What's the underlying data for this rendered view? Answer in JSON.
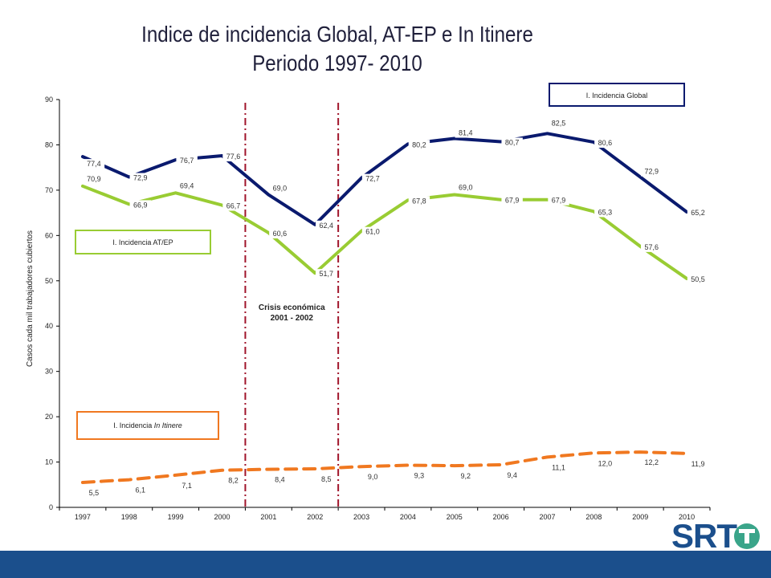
{
  "header": {
    "title_line1": "Indice de incidencia Global, AT-EP e In Itinere",
    "title_line2": "Periodo 1997- 2010"
  },
  "logo": {
    "text": "SRT"
  },
  "colors": {
    "global": "#0a1a6e",
    "atep": "#99cc33",
    "itinere": "#f07820",
    "crisis_line": "#a0142a",
    "footer": "#1b4f8c"
  },
  "chart_data": {
    "type": "line",
    "title": "Indice de incidencia Global, AT-EP e In Itinere Periodo 1997- 2010",
    "ylabel": "Casos cada mil trabajadores cubiertos",
    "xlabel": "",
    "ylim": [
      0,
      90
    ],
    "yticks": [
      0,
      10,
      20,
      30,
      40,
      50,
      60,
      70,
      80,
      90
    ],
    "categories": [
      "1997",
      "1998",
      "1999",
      "2000",
      "2001",
      "2002",
      "2003",
      "2004",
      "2005",
      "2006",
      "2007",
      "2008",
      "2009",
      "2010"
    ],
    "series": [
      {
        "name": "I. Incidencia Global",
        "values": [
          77.4,
          72.9,
          76.7,
          77.6,
          69.0,
          62.4,
          72.7,
          80.2,
          81.4,
          80.7,
          82.5,
          80.6,
          72.9,
          65.2
        ],
        "labels": [
          "77,4",
          "72,9",
          "76,7",
          "77,6",
          "69,0",
          "62,4",
          "72,7",
          "80,2",
          "81,4",
          "80,7",
          "82,5",
          "80,6",
          "72,9",
          "65,2"
        ]
      },
      {
        "name": "I. Incidencia AT/EP",
        "values": [
          70.9,
          66.9,
          69.4,
          66.7,
          60.6,
          51.7,
          61.0,
          67.8,
          69.0,
          67.9,
          67.9,
          65.3,
          57.6,
          50.5
        ],
        "labels": [
          "70,9",
          "66,9",
          "69,4",
          "66,7",
          "60,6",
          "51,7",
          "61,0",
          "67,8",
          "69,0",
          "67,9",
          "67,9",
          "65,3",
          "57,6",
          "50,5"
        ]
      },
      {
        "name": "I. Incidencia In Itinere",
        "name_prefix": "I. Incidencia ",
        "name_italic": "In Itinere",
        "values": [
          5.5,
          6.1,
          7.1,
          8.2,
          8.4,
          8.5,
          9.0,
          9.3,
          9.2,
          9.4,
          11.1,
          12.0,
          12.2,
          11.9
        ],
        "labels": [
          "5,5",
          "6,1",
          "7,1",
          "8,2",
          "8,4",
          "8,5",
          "9,0",
          "9,3",
          "9,2",
          "9,4",
          "11,1",
          "12,0",
          "12,2",
          "11,9"
        ]
      }
    ],
    "annotation": {
      "line1": "Crisis económica",
      "line2": "2001 - 2002",
      "between": [
        "2000",
        "2001",
        "2002",
        "2003"
      ]
    },
    "grid": false
  }
}
